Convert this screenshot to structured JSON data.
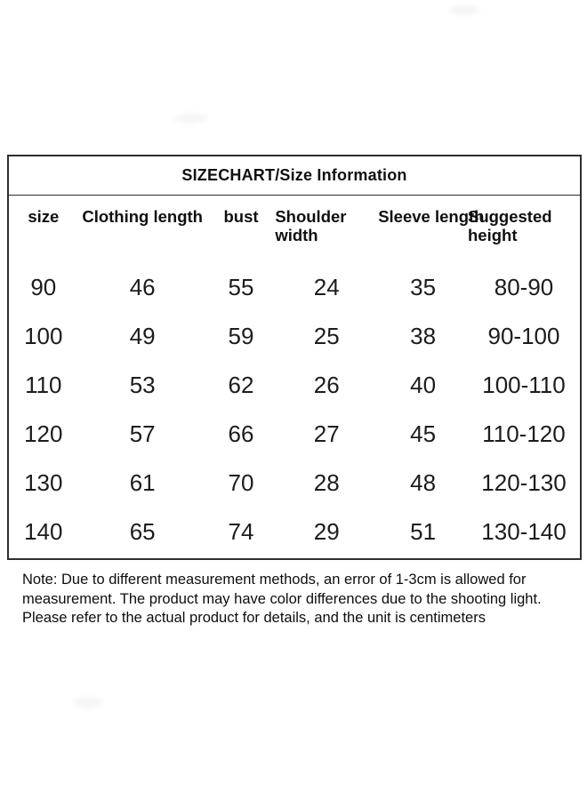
{
  "page": {
    "background_color": "#ffffff",
    "border_color": "#2e2e2e",
    "text_color": "#151515"
  },
  "chart_data": {
    "type": "table",
    "title": "SIZECHART/Size Information",
    "unit": "centimeters",
    "columns": [
      "size",
      "Clothing length",
      "bust",
      "Shoulder width",
      "Sleeve length",
      "Suggested height"
    ],
    "rows": [
      [
        "90",
        "46",
        "55",
        "24",
        "35",
        "80-90"
      ],
      [
        "100",
        "49",
        "59",
        "25",
        "38",
        "90-100"
      ],
      [
        "110",
        "53",
        "62",
        "26",
        "40",
        "100-110"
      ],
      [
        "120",
        "57",
        "66",
        "27",
        "45",
        "110-120"
      ],
      [
        "130",
        "61",
        "70",
        "28",
        "48",
        "120-130"
      ],
      [
        "140",
        "65",
        "74",
        "29",
        "51",
        "130-140"
      ]
    ],
    "note": "Note: Due to different measurement methods, an error of 1-3cm is allowed for measurement. The product may have color differences due to the shooting light. Please refer to the actual product for details, and the unit is centimeters"
  }
}
